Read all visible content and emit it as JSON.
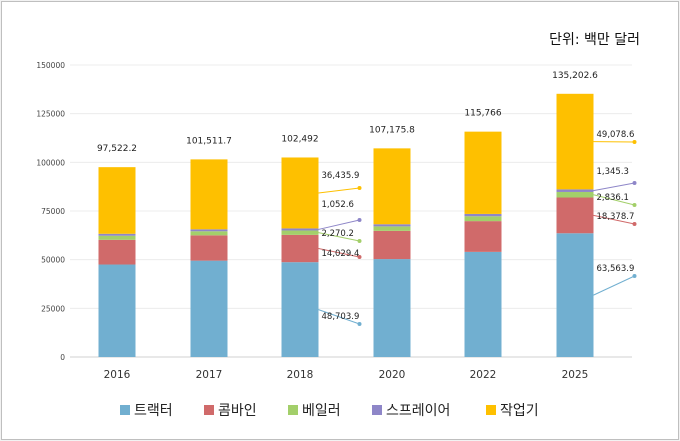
{
  "unit_label": "단위: 백만 달러",
  "chart_data": {
    "type": "bar",
    "stacked": true,
    "categories": [
      "2016",
      "2017",
      "2018",
      "2020",
      "2022",
      "2025"
    ],
    "ylim": [
      0,
      150000
    ],
    "yticks": [
      "0",
      "25000",
      "50000",
      "75000",
      "100000",
      "125000",
      "150000"
    ],
    "series": [
      {
        "name": "트랙터",
        "color": "#71afd0",
        "values": [
          47500,
          49500,
          48703.9,
          50300,
          54000,
          63563.9
        ]
      },
      {
        "name": "콤바인",
        "color": "#d06a6a",
        "values": [
          12700,
          13000,
          14029.4,
          14500,
          15800,
          18378.7
        ]
      },
      {
        "name": "베일러",
        "color": "#a3cf6a",
        "values": [
          2100,
          2100,
          2270.2,
          2300,
          2500,
          2836.1
        ]
      },
      {
        "name": "스프레이어",
        "color": "#8e86c8",
        "values": [
          1000,
          1000,
          1052.6,
          1100,
          1200,
          1345.3
        ]
      },
      {
        "name": "작업기",
        "color": "#fec000",
        "values": [
          34222.2,
          35911.7,
          36435.9,
          38975.8,
          42266,
          49078.6
        ]
      }
    ],
    "totals": [
      "97,522.2",
      "101,511.7",
      "102,492",
      "107,175.8",
      "115,766",
      "135,202.6"
    ],
    "callouts": [
      {
        "bar": 2,
        "series": 4,
        "text": "36,435.9"
      },
      {
        "bar": 2,
        "series": 3,
        "text": "1,052.6"
      },
      {
        "bar": 2,
        "series": 2,
        "text": "2,270.2"
      },
      {
        "bar": 2,
        "series": 1,
        "text": "14,029.4"
      },
      {
        "bar": 2,
        "series": 0,
        "text": "48,703.9"
      },
      {
        "bar": 5,
        "series": 4,
        "text": "49,078.6"
      },
      {
        "bar": 5,
        "series": 3,
        "text": "1,345.3"
      },
      {
        "bar": 5,
        "series": 2,
        "text": "2,836.1"
      },
      {
        "bar": 5,
        "series": 1,
        "text": "18,378.7"
      },
      {
        "bar": 5,
        "series": 0,
        "text": "63,563.9"
      }
    ]
  }
}
